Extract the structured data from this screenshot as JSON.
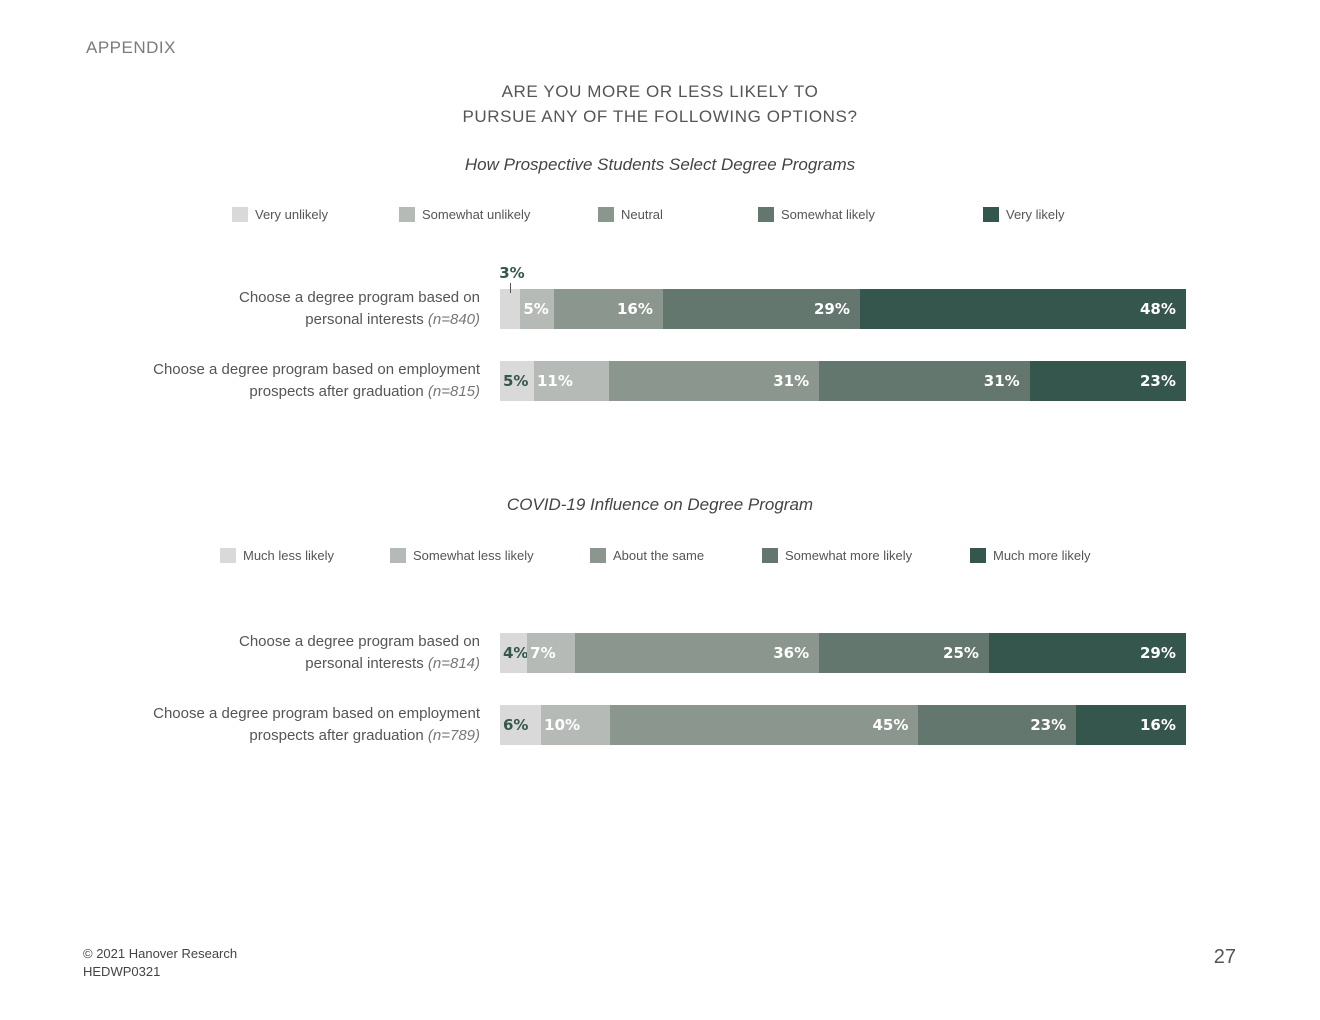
{
  "section_label": "APPENDIX",
  "main_title": {
    "line1": "ARE YOU MORE OR LESS LIKELY TO",
    "line2": "PURSUE ANY OF THE FOLLOWING OPTIONS?"
  },
  "colors": [
    "#d9d9d9",
    "#b5bab6",
    "#8b968f",
    "#63776f",
    "#34564c"
  ],
  "chart_data": [
    {
      "type": "bar",
      "orientation": "horizontal",
      "stacked": true,
      "title": "How Prospective Students Select Degree Programs",
      "legend": [
        "Very unlikely",
        "Somewhat unlikely",
        "Neutral",
        "Somewhat likely",
        "Very likely"
      ],
      "rows": [
        {
          "label": "Choose a degree program based on",
          "label2": "personal interests",
          "n": "(n=840)",
          "values": [
            3,
            5,
            16,
            29,
            48
          ]
        },
        {
          "label": "Choose a degree program based on employment",
          "label2": "prospects after graduation",
          "n": "(n=815)",
          "values": [
            5,
            11,
            31,
            31,
            23
          ]
        }
      ]
    },
    {
      "type": "bar",
      "orientation": "horizontal",
      "stacked": true,
      "title": "COVID-19 Influence on Degree Program",
      "legend": [
        "Much less likely",
        "Somewhat less likely",
        "About the same",
        "Somewhat more likely",
        "Much more likely"
      ],
      "rows": [
        {
          "label": "Choose a degree program based on",
          "label2": "personal interests",
          "n": "(n=814)",
          "values": [
            4,
            7,
            36,
            25,
            29
          ]
        },
        {
          "label": "Choose a degree program based on employment",
          "label2": "prospects after graduation",
          "n": "(n=789)",
          "values": [
            6,
            10,
            45,
            23,
            16
          ]
        }
      ]
    }
  ],
  "footer": {
    "copyright": "© 2021 Hanover Research",
    "code": "HEDWP0321"
  },
  "page_number": "27"
}
